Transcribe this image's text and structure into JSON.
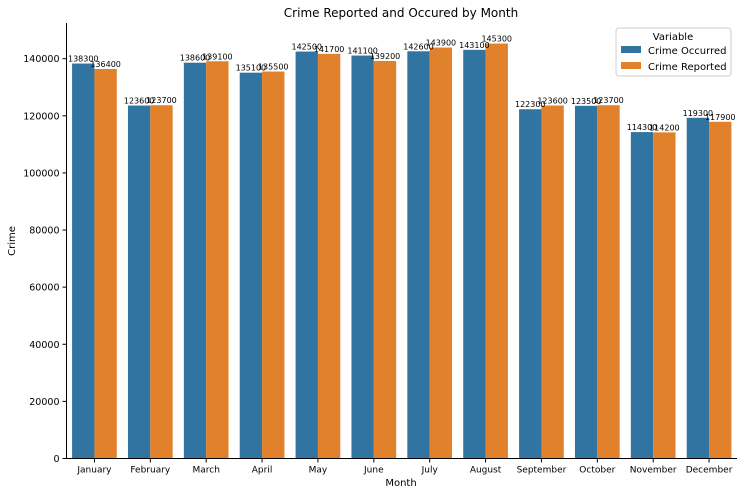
{
  "chart_data": {
    "type": "bar",
    "title": "Crime Reported and Occured by Month",
    "xlabel": "Month",
    "ylabel": "Crime",
    "ylim": [
      0,
      152500
    ],
    "yticks": [
      0,
      20000,
      40000,
      60000,
      80000,
      100000,
      120000,
      140000
    ],
    "grid": false,
    "legend": {
      "title": "Variable",
      "placement": "top-right"
    },
    "categories": [
      "January",
      "February",
      "March",
      "April",
      "May",
      "June",
      "July",
      "August",
      "September",
      "October",
      "November",
      "December"
    ],
    "series": [
      {
        "name": "Crime Occurred",
        "color": "#3274a1",
        "values": [
          138300,
          123600,
          138600,
          135100,
          142500,
          141100,
          142600,
          143100,
          122300,
          123500,
          114300,
          119300
        ]
      },
      {
        "name": "Crime Reported",
        "color": "#e1812c",
        "values": [
          136400,
          123700,
          139100,
          135500,
          141700,
          139200,
          143900,
          145300,
          123600,
          123700,
          114200,
          117900
        ]
      }
    ]
  }
}
